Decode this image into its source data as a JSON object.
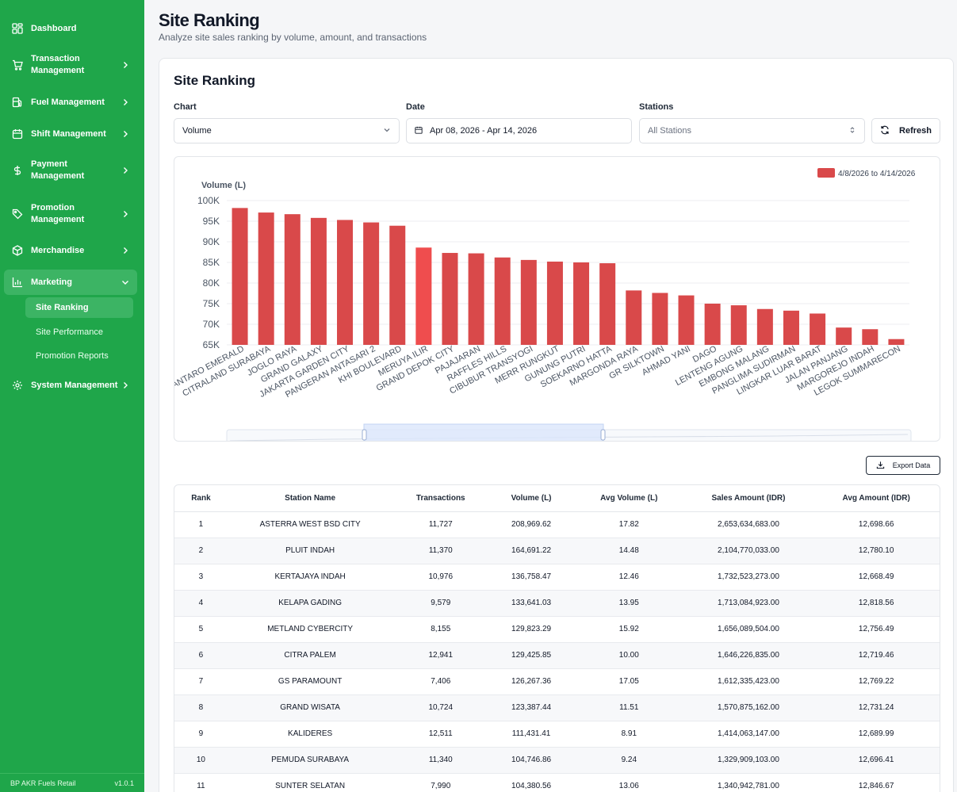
{
  "sidebar": {
    "items": [
      {
        "label": "Dashboard",
        "icon": "grid-icon"
      },
      {
        "label": "Transaction Management",
        "icon": "cart-icon"
      },
      {
        "label": "Fuel Management",
        "icon": "fuel-icon"
      },
      {
        "label": "Shift Management",
        "icon": "calendar-icon"
      },
      {
        "label": "Payment Management",
        "icon": "dollar-icon"
      },
      {
        "label": "Promotion Management",
        "icon": "tag-icon"
      },
      {
        "label": "Merchandise",
        "icon": "box-icon"
      },
      {
        "label": "Marketing",
        "icon": "bar-chart-icon"
      },
      {
        "label": "System Management",
        "icon": "gear-icon"
      }
    ],
    "sub_items": [
      "Site Ranking",
      "Site Performance",
      "Promotion Reports"
    ],
    "footer_brand": "BP AKR Fuels Retail",
    "footer_version": "v1.0.1"
  },
  "header": {
    "title": "Site Ranking",
    "subtitle": "Analyze site sales ranking by volume, amount, and transactions"
  },
  "filters": {
    "card_title": "Site Ranking",
    "chart_label": "Chart",
    "chart_value": "Volume",
    "date_label": "Date",
    "date_value": "Apr 08, 2026 - Apr 14, 2026",
    "stations_label": "Stations",
    "stations_value": "All Stations",
    "refresh_label": "Refresh"
  },
  "colors": {
    "sidebar": "#1fa64a",
    "bar": "#d9494a",
    "bar_highlight": "#ef4d4e"
  },
  "chart_data": {
    "type": "bar",
    "ylabel": "Volume (L)",
    "legend": "4/8/2026 to 4/14/2026",
    "legend_position": "top-right",
    "ylim": [
      65000,
      100000
    ],
    "yticks": [
      "100K",
      "95K",
      "90K",
      "85K",
      "80K",
      "75K",
      "70K",
      "65K"
    ],
    "grid": true,
    "categories": [
      "ANTARO EMERALD",
      "CITRALAND SURABAYA",
      "JOGLO RAYA",
      "GRAND GALAXY",
      "JAKARTA GARDEN CITY",
      "PANGERAN ANTASARI 2",
      "KHI BOULEVARD",
      "MERUYA ILIR",
      "GRAND DEPOK CITY",
      "PAJAJARAN",
      "RAFFLES HILLS",
      "CIBUBUR TRANSYOGI",
      "MERR RUNGKUT",
      "GUNUNG PUTRI",
      "SOEKARNO HATTA",
      "MARGONDA RAYA",
      "GR SILKTOWN",
      "AHMAD YANI",
      "DAGO",
      "LENTENG AGUNG",
      "EMBONG MALANG",
      "PANGLIMA SUDIRMAN",
      "LINGKAR LUAR BARAT",
      "JALAN PANJANG",
      "MARGOREJO INDAH",
      "LEGOK SUMMARECON"
    ],
    "values": [
      98200,
      97100,
      96700,
      95800,
      95300,
      94700,
      93900,
      88600,
      87300,
      87200,
      86200,
      85600,
      85200,
      85000,
      84800,
      78200,
      77600,
      77000,
      75000,
      74600,
      73700,
      73300,
      72600,
      69200,
      68800,
      66400
    ],
    "highlight_index": 7
  },
  "export_label": "Export Data",
  "table": {
    "columns": [
      "Rank",
      "Station Name",
      "Transactions",
      "Volume (L)",
      "Avg Volume (L)",
      "Sales Amount (IDR)",
      "Avg Amount (IDR)"
    ],
    "rows": [
      [
        "1",
        "ASTERRA WEST BSD CITY",
        "11,727",
        "208,969.62",
        "17.82",
        "2,653,634,683.00",
        "12,698.66"
      ],
      [
        "2",
        "PLUIT INDAH",
        "11,370",
        "164,691.22",
        "14.48",
        "2,104,770,033.00",
        "12,780.10"
      ],
      [
        "3",
        "KERTAJAYA INDAH",
        "10,976",
        "136,758.47",
        "12.46",
        "1,732,523,273.00",
        "12,668.49"
      ],
      [
        "4",
        "KELAPA GADING",
        "9,579",
        "133,641.03",
        "13.95",
        "1,713,084,923.00",
        "12,818.56"
      ],
      [
        "5",
        "METLAND CYBERCITY",
        "8,155",
        "129,823.29",
        "15.92",
        "1,656,089,504.00",
        "12,756.49"
      ],
      [
        "6",
        "CITRA PALEM",
        "12,941",
        "129,425.85",
        "10.00",
        "1,646,226,835.00",
        "12,719.46"
      ],
      [
        "7",
        "GS PARAMOUNT",
        "7,406",
        "126,267.36",
        "17.05",
        "1,612,335,423.00",
        "12,769.22"
      ],
      [
        "8",
        "GRAND WISATA",
        "10,724",
        "123,387.44",
        "11.51",
        "1,570,875,162.00",
        "12,731.24"
      ],
      [
        "9",
        "KALIDERES",
        "12,511",
        "111,431.41",
        "8.91",
        "1,414,063,147.00",
        "12,689.99"
      ],
      [
        "10",
        "PEMUDA SURABAYA",
        "11,340",
        "104,746.86",
        "9.24",
        "1,329,909,103.00",
        "12,696.41"
      ],
      [
        "11",
        "SUNTER SELATAN",
        "7,990",
        "104,380.56",
        "13.06",
        "1,340,942,781.00",
        "12,846.67"
      ]
    ]
  }
}
